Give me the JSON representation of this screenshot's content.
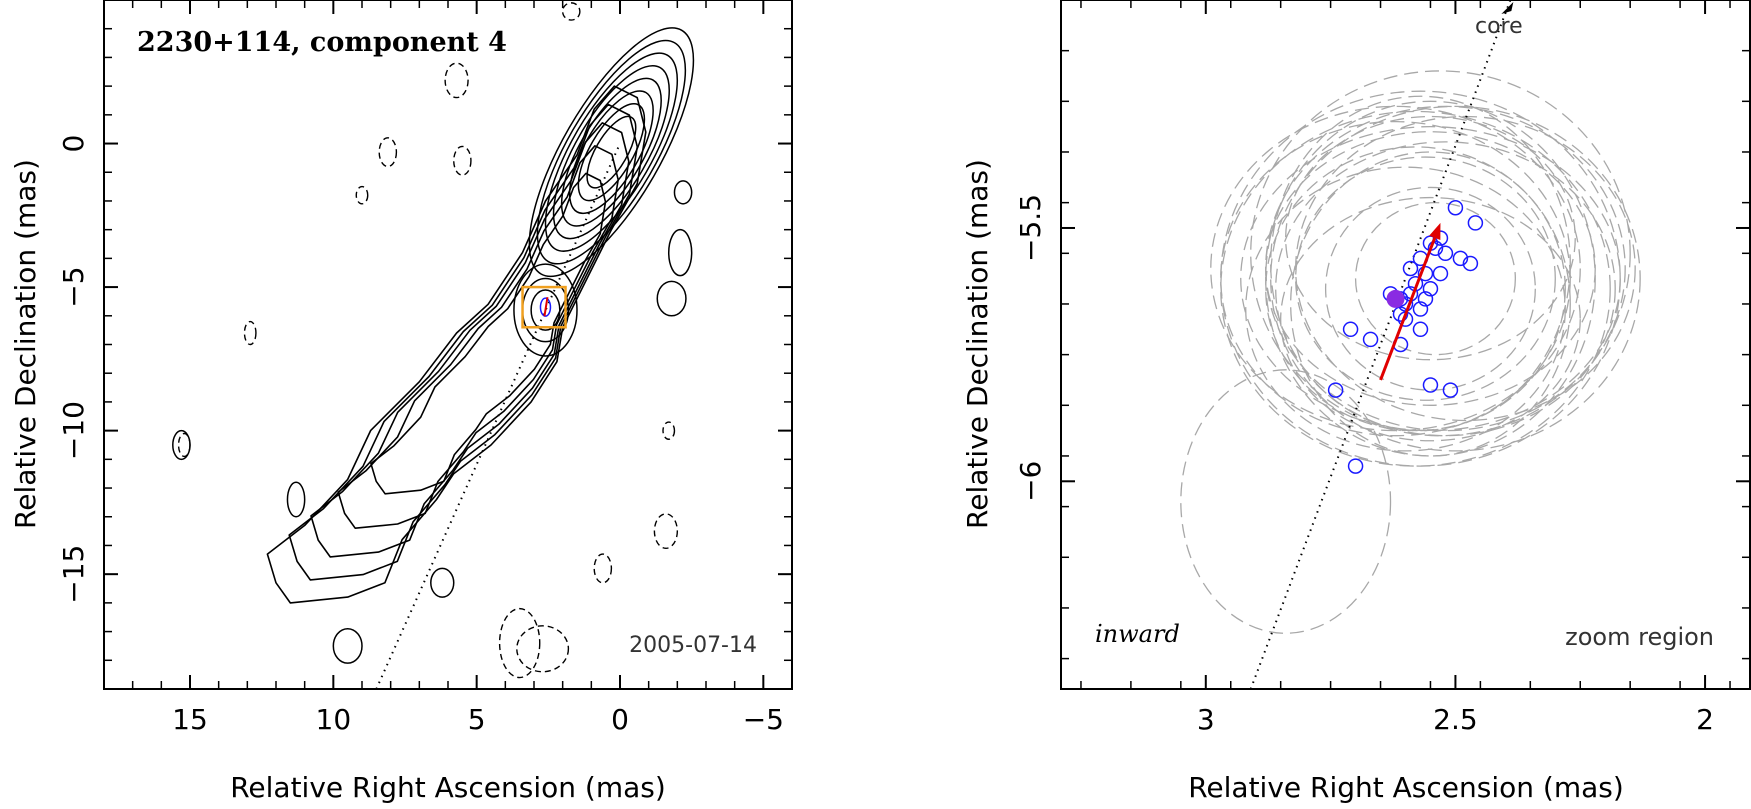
{
  "chart_data": [
    {
      "type": "contour",
      "title": "2230+114, component 4",
      "epoch": "2005-07-14",
      "xlabel": "Relative Right Ascension (mas)",
      "ylabel": "Relative Declination (mas)",
      "xlim": [
        18,
        -6
      ],
      "ylim": [
        -19,
        5
      ],
      "xticks": [
        15,
        10,
        5,
        0,
        -5
      ],
      "xtick_labels": [
        "15",
        "10",
        "5",
        "0",
        "−5"
      ],
      "yticks": [
        0,
        -5,
        -10,
        -15
      ],
      "ytick_labels": [
        "0",
        "−5",
        "−10",
        "−15"
      ],
      "core_position": [
        0,
        0
      ],
      "component_position": [
        2.6,
        -5.7
      ],
      "zoom_box": {
        "x": [
          1.9,
          3.4
        ],
        "y": [
          -6.4,
          -5.0
        ]
      },
      "trajectory_line": {
        "from": [
          8.5,
          -19
        ],
        "to": [
          0,
          0
        ]
      },
      "colors": {
        "contour": "#000000",
        "zoom_box": "#f0a020",
        "points": "#1a1aff",
        "arrow": "#e00000"
      }
    },
    {
      "type": "scatter",
      "xlabel": "Relative Right Ascension (mas)",
      "ylabel": "Relative Declination (mas)",
      "xlim": [
        3.29,
        1.91
      ],
      "ylim": [
        -6.41,
        -5.05
      ],
      "xticks": [
        3,
        2.5,
        2
      ],
      "xtick_labels": [
        "3",
        "2.5",
        "2"
      ],
      "yticks": [
        -5.5,
        -6
      ],
      "ytick_labels": [
        "−5.5",
        "−6"
      ],
      "core_label": "core",
      "inward_label": "inward",
      "zoom_label": "zoom region",
      "points": [
        [
          2.5,
          -5.46
        ],
        [
          2.46,
          -5.49
        ],
        [
          2.53,
          -5.52
        ],
        [
          2.55,
          -5.53
        ],
        [
          2.54,
          -5.54
        ],
        [
          2.52,
          -5.55
        ],
        [
          2.49,
          -5.56
        ],
        [
          2.47,
          -5.57
        ],
        [
          2.57,
          -5.56
        ],
        [
          2.59,
          -5.58
        ],
        [
          2.56,
          -5.59
        ],
        [
          2.53,
          -5.59
        ],
        [
          2.58,
          -5.61
        ],
        [
          2.55,
          -5.62
        ],
        [
          2.59,
          -5.63
        ],
        [
          2.61,
          -5.64
        ],
        [
          2.56,
          -5.64
        ],
        [
          2.6,
          -5.65
        ],
        [
          2.63,
          -5.63
        ],
        [
          2.57,
          -5.66
        ],
        [
          2.61,
          -5.67
        ],
        [
          2.6,
          -5.68
        ],
        [
          2.57,
          -5.7
        ],
        [
          2.71,
          -5.7
        ],
        [
          2.67,
          -5.72
        ],
        [
          2.61,
          -5.73
        ],
        [
          2.55,
          -5.81
        ],
        [
          2.51,
          -5.82
        ],
        [
          2.74,
          -5.82
        ],
        [
          2.7,
          -5.97
        ]
      ],
      "mean_point": [
        2.62,
        -5.64
      ],
      "arrow": {
        "from": [
          2.65,
          -5.8
        ],
        "to": [
          2.53,
          -5.49
        ]
      },
      "core_direction": {
        "from": [
          2.91,
          -6.41
        ],
        "to": [
          2.39,
          -5.05
        ]
      },
      "ellipses": [
        {
          "cx": 2.55,
          "cy": -5.6,
          "rx": 0.38,
          "ry": 0.3
        },
        {
          "cx": 2.55,
          "cy": -5.6,
          "rx": 0.33,
          "ry": 0.35
        },
        {
          "cx": 2.52,
          "cy": -5.58,
          "rx": 0.36,
          "ry": 0.32
        },
        {
          "cx": 2.58,
          "cy": -5.62,
          "rx": 0.3,
          "ry": 0.28
        },
        {
          "cx": 2.56,
          "cy": -5.6,
          "rx": 0.26,
          "ry": 0.24
        },
        {
          "cx": 2.55,
          "cy": -5.62,
          "rx": 0.21,
          "ry": 0.2
        },
        {
          "cx": 2.54,
          "cy": -5.6,
          "rx": 0.16,
          "ry": 0.15
        },
        {
          "cx": 2.55,
          "cy": -5.58,
          "rx": 0.33,
          "ry": 0.27
        },
        {
          "cx": 2.5,
          "cy": -5.6,
          "rx": 0.37,
          "ry": 0.34
        },
        {
          "cx": 2.62,
          "cy": -5.6,
          "rx": 0.35,
          "ry": 0.31
        },
        {
          "cx": 2.53,
          "cy": -5.55,
          "rx": 0.38,
          "ry": 0.36
        },
        {
          "cx": 2.6,
          "cy": -5.66,
          "rx": 0.32,
          "ry": 0.28
        },
        {
          "cx": 2.57,
          "cy": -5.6,
          "rx": 0.4,
          "ry": 0.37
        },
        {
          "cx": 2.55,
          "cy": -5.65,
          "rx": 0.28,
          "ry": 0.3
        },
        {
          "cx": 2.52,
          "cy": -5.62,
          "rx": 0.34,
          "ry": 0.29
        },
        {
          "cx": 2.57,
          "cy": -5.57,
          "rx": 0.3,
          "ry": 0.33
        },
        {
          "cx": 2.84,
          "cy": -6.04,
          "rx": 0.21,
          "ry": 0.26
        },
        {
          "cx": 2.62,
          "cy": -5.58,
          "rx": 0.37,
          "ry": 0.32
        },
        {
          "cx": 2.48,
          "cy": -5.58,
          "rx": 0.34,
          "ry": 0.3
        },
        {
          "cx": 2.55,
          "cy": -5.68,
          "rx": 0.3,
          "ry": 0.24
        },
        {
          "cx": 2.55,
          "cy": -5.52,
          "rx": 0.29,
          "ry": 0.24
        },
        {
          "cx": 2.58,
          "cy": -5.62,
          "rx": 0.39,
          "ry": 0.35
        }
      ],
      "colors": {
        "ellipse": "#a8a8a8",
        "points": "#1a1aff",
        "mean": "#8a2be2",
        "arrow": "#e00000"
      }
    }
  ]
}
